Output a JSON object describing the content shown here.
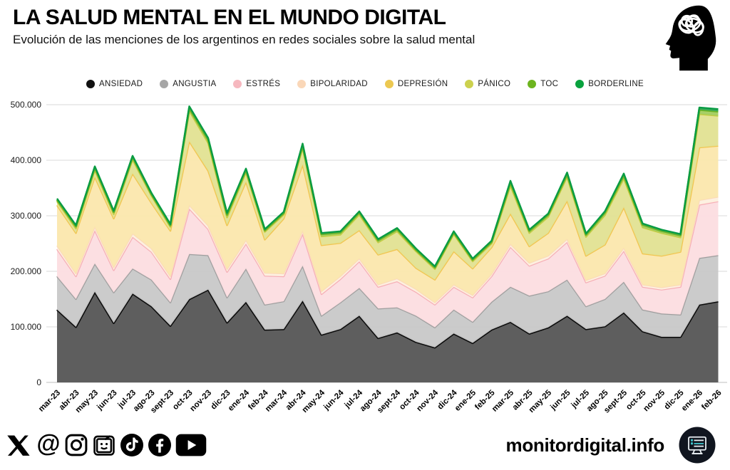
{
  "header": {
    "title": "LA SALUD MENTAL EN EL MUNDO DIGITAL",
    "subtitle": "Evolución de las menciones de los argentinos en redes sociales sobre la salud mental",
    "head_icon": "head-brain-scribble-icon"
  },
  "footer": {
    "site": "monitordigital.info",
    "social_icons": [
      "x-icon",
      "threads-icon",
      "instagram-icon",
      "tv-smiley-icon",
      "tiktok-icon",
      "facebook-icon",
      "youtube-icon"
    ],
    "brand_icon": "monitor-dashboard-icon"
  },
  "chart_data": {
    "type": "area",
    "stacked": true,
    "grid": true,
    "legend_position": "top",
    "ylim": [
      0,
      500000
    ],
    "yticks": [
      0,
      100000,
      200000,
      300000,
      400000,
      500000
    ],
    "ytick_labels": [
      "0",
      "100.000",
      "200.000",
      "300.000",
      "400.000",
      "500.000"
    ],
    "categories": [
      "mar-23",
      "abr-23",
      "may-23",
      "jun-23",
      "jul-23",
      "ago-23",
      "sept-23",
      "oct-23",
      "nov-23",
      "dic-23",
      "ene-24",
      "feb-24",
      "mar-24",
      "abr-24",
      "may-24",
      "jun-24",
      "jul-24",
      "ago-24",
      "sept-24",
      "oct-24",
      "nov-24",
      "dic-24",
      "ene-25",
      "feb-25",
      "mar-25",
      "abr-25",
      "may-25",
      "jun-25",
      "jul-25",
      "ago-25",
      "sept-25",
      "oct-25",
      "nov-25",
      "dic-25",
      "ene-26",
      "feb-26"
    ],
    "series": [
      {
        "name": "ANSIEDAD",
        "chip": "#111111",
        "fill": "#575757",
        "stroke": "#0a0a0a",
        "values": [
          131000,
          100000,
          163000,
          107000,
          160000,
          137000,
          102000,
          150000,
          167000,
          108000,
          145000,
          95000,
          96000,
          147000,
          86000,
          96000,
          120000,
          80000,
          90000,
          73000,
          63000,
          88000,
          71000,
          95000,
          109000,
          88000,
          99000,
          120000,
          96000,
          101000,
          126000,
          92000,
          82000,
          82000,
          140000,
          146000
        ]
      },
      {
        "name": "ANGUSTIA",
        "chip": "#a6a6a6",
        "fill": "#c9c9c9",
        "stroke": "#9e9e9e",
        "values": [
          60000,
          50000,
          51000,
          55000,
          45000,
          48000,
          42000,
          81000,
          62000,
          45000,
          60000,
          45000,
          50000,
          63000,
          34000,
          48000,
          50000,
          53000,
          45000,
          47000,
          36000,
          43000,
          38000,
          50000,
          63000,
          68000,
          65000,
          65000,
          41000,
          49000,
          55000,
          39000,
          42000,
          40000,
          84000,
          83000
        ]
      },
      {
        "name": "ESTRÉS",
        "chip": "#f6b8bf",
        "fill": "#fcdee1",
        "stroke": "#f6aeb6",
        "values": [
          49000,
          41000,
          60000,
          40000,
          57000,
          50000,
          42000,
          82000,
          47000,
          46000,
          45000,
          52000,
          45000,
          58000,
          39000,
          42000,
          48000,
          39000,
          47000,
          43000,
          41000,
          41000,
          44000,
          46000,
          72000,
          54000,
          59000,
          68000,
          43000,
          42000,
          56000,
          41000,
          43000,
          50000,
          96000,
          97000
        ]
      },
      {
        "name": "BIPOLARIDAD",
        "chip": "#fad7b8",
        "fill": "#fdf0e0",
        "stroke": "#fbd9bb",
        "values": [
          6000,
          5000,
          6000,
          5000,
          6000,
          6000,
          5000,
          6000,
          6000,
          5000,
          6000,
          5000,
          5000,
          5000,
          5000,
          5000,
          5000,
          4000,
          5000,
          5000,
          4000,
          4000,
          4000,
          4000,
          5000,
          5000,
          5000,
          5000,
          4000,
          4000,
          5000,
          4000,
          4000,
          4000,
          8000,
          8000
        ]
      },
      {
        "name": "DEPRESIÓN",
        "chip": "#ecc851",
        "fill": "#fbe7ae",
        "stroke": "#f2c44e",
        "values": [
          73000,
          73000,
          90000,
          88000,
          108000,
          82000,
          82000,
          115000,
          99000,
          79000,
          105000,
          60000,
          99000,
          119000,
          83000,
          60000,
          51000,
          54000,
          53000,
          38000,
          41000,
          60000,
          48000,
          48000,
          55000,
          30000,
          41000,
          69000,
          44000,
          52000,
          73000,
          56000,
          57000,
          59000,
          95000,
          92000
        ]
      },
      {
        "name": "PÁNICO",
        "chip": "#ccd14e",
        "fill": "#e2e294",
        "stroke": "#c6cc40",
        "values": [
          7000,
          8000,
          12000,
          8000,
          25000,
          13000,
          7000,
          55000,
          50000,
          14000,
          17000,
          14000,
          7000,
          30000,
          16000,
          15000,
          28000,
          22000,
          32000,
          30000,
          19000,
          31000,
          13000,
          7000,
          50000,
          24000,
          29000,
          43000,
          34000,
          53000,
          52000,
          47000,
          41000,
          26000,
          60000,
          54000
        ]
      },
      {
        "name": "TOC",
        "chip": "#6db41f",
        "fill": "#a4cd60",
        "stroke": "#6cb324",
        "values": [
          3000,
          4000,
          5000,
          4000,
          5000,
          3000,
          3000,
          5000,
          6000,
          5000,
          5000,
          3000,
          3000,
          5000,
          4000,
          4000,
          4000,
          4000,
          4000,
          3000,
          3000,
          3000,
          3000,
          3000,
          6000,
          4000,
          4000,
          5000,
          4000,
          5000,
          6000,
          5000,
          4000,
          4000,
          8000,
          8000
        ]
      },
      {
        "name": "BORDERLINE",
        "chip": "#09a23e",
        "fill": "#35a95c",
        "stroke": "#089b43",
        "values": [
          2000,
          2000,
          2000,
          2000,
          2000,
          2000,
          2000,
          3000,
          3000,
          3000,
          2000,
          2000,
          2000,
          3000,
          2000,
          2000,
          2000,
          2000,
          2000,
          2000,
          2000,
          2000,
          2000,
          2000,
          3000,
          2000,
          2000,
          3000,
          2000,
          2000,
          3000,
          2000,
          2000,
          2000,
          4000,
          4000
        ]
      }
    ]
  }
}
